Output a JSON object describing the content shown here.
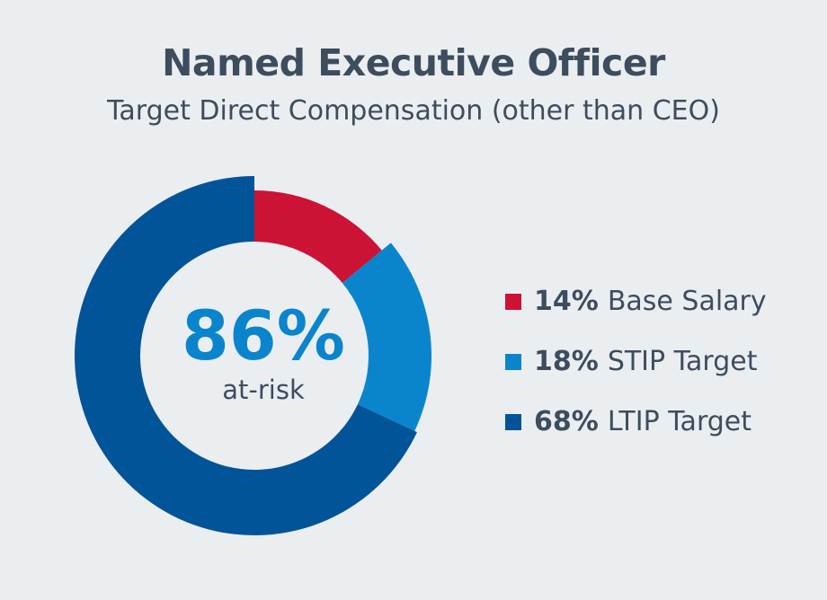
{
  "chart_data": {
    "type": "pie",
    "title": "Named Executive Officer",
    "subtitle": "Target Direct Compensation (other than CEO)",
    "center_value": "86%",
    "center_label": "at-risk",
    "legend_placement": "right",
    "slices": [
      {
        "pct_label": "14%",
        "label": "Base Salary",
        "value": 14,
        "color": "#cc1235"
      },
      {
        "pct_label": "18%",
        "label": "STIP Target",
        "value": 18,
        "color": "#0a85cd"
      },
      {
        "pct_label": "68%",
        "label": "LTIP Target",
        "value": 68,
        "color": "#025499"
      }
    ]
  }
}
